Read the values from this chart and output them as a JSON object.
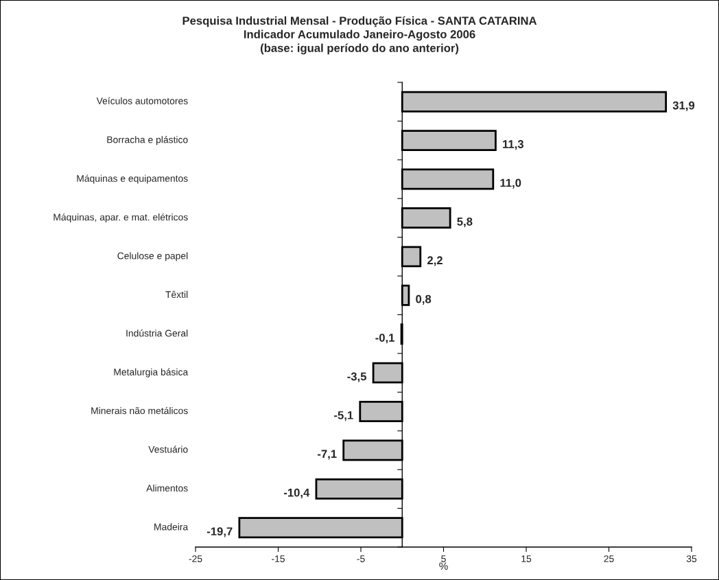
{
  "chart_data": {
    "type": "bar",
    "orientation": "horizontal",
    "title": "Pesquisa Industrial Mensal - Produção Física - SANTA CATARINA\nIndicador Acumulado Janeiro-Agosto 2006\n(base: igual período do ano anterior)",
    "xlabel": "%",
    "categories": [
      "Veículos automotores",
      "Borracha e plástico",
      "Máquinas e equipamentos",
      "Máquinas, apar. e mat. elétricos",
      "Celulose e papel",
      "Têxtil",
      "Indústria Geral",
      "Metalurgia básica",
      "Minerais não metálicos",
      "Vestuário",
      "Alimentos",
      "Madeira"
    ],
    "values": [
      31.9,
      11.3,
      11.0,
      5.8,
      2.2,
      0.8,
      -0.1,
      -3.5,
      -5.1,
      -7.1,
      -10.4,
      -19.7
    ],
    "value_labels": [
      "31,9",
      "11,3",
      "11,0",
      "5,8",
      "2,2",
      "0,8",
      "-0,1",
      "-3,5",
      "-5,1",
      "-7,1",
      "-10,4",
      "-19,7"
    ],
    "color": "#c0c0c0",
    "xlim": [
      -25,
      35
    ],
    "xticks": [
      -25,
      -15,
      -5,
      5,
      15,
      25,
      35
    ],
    "grid": false,
    "legend": false
  }
}
